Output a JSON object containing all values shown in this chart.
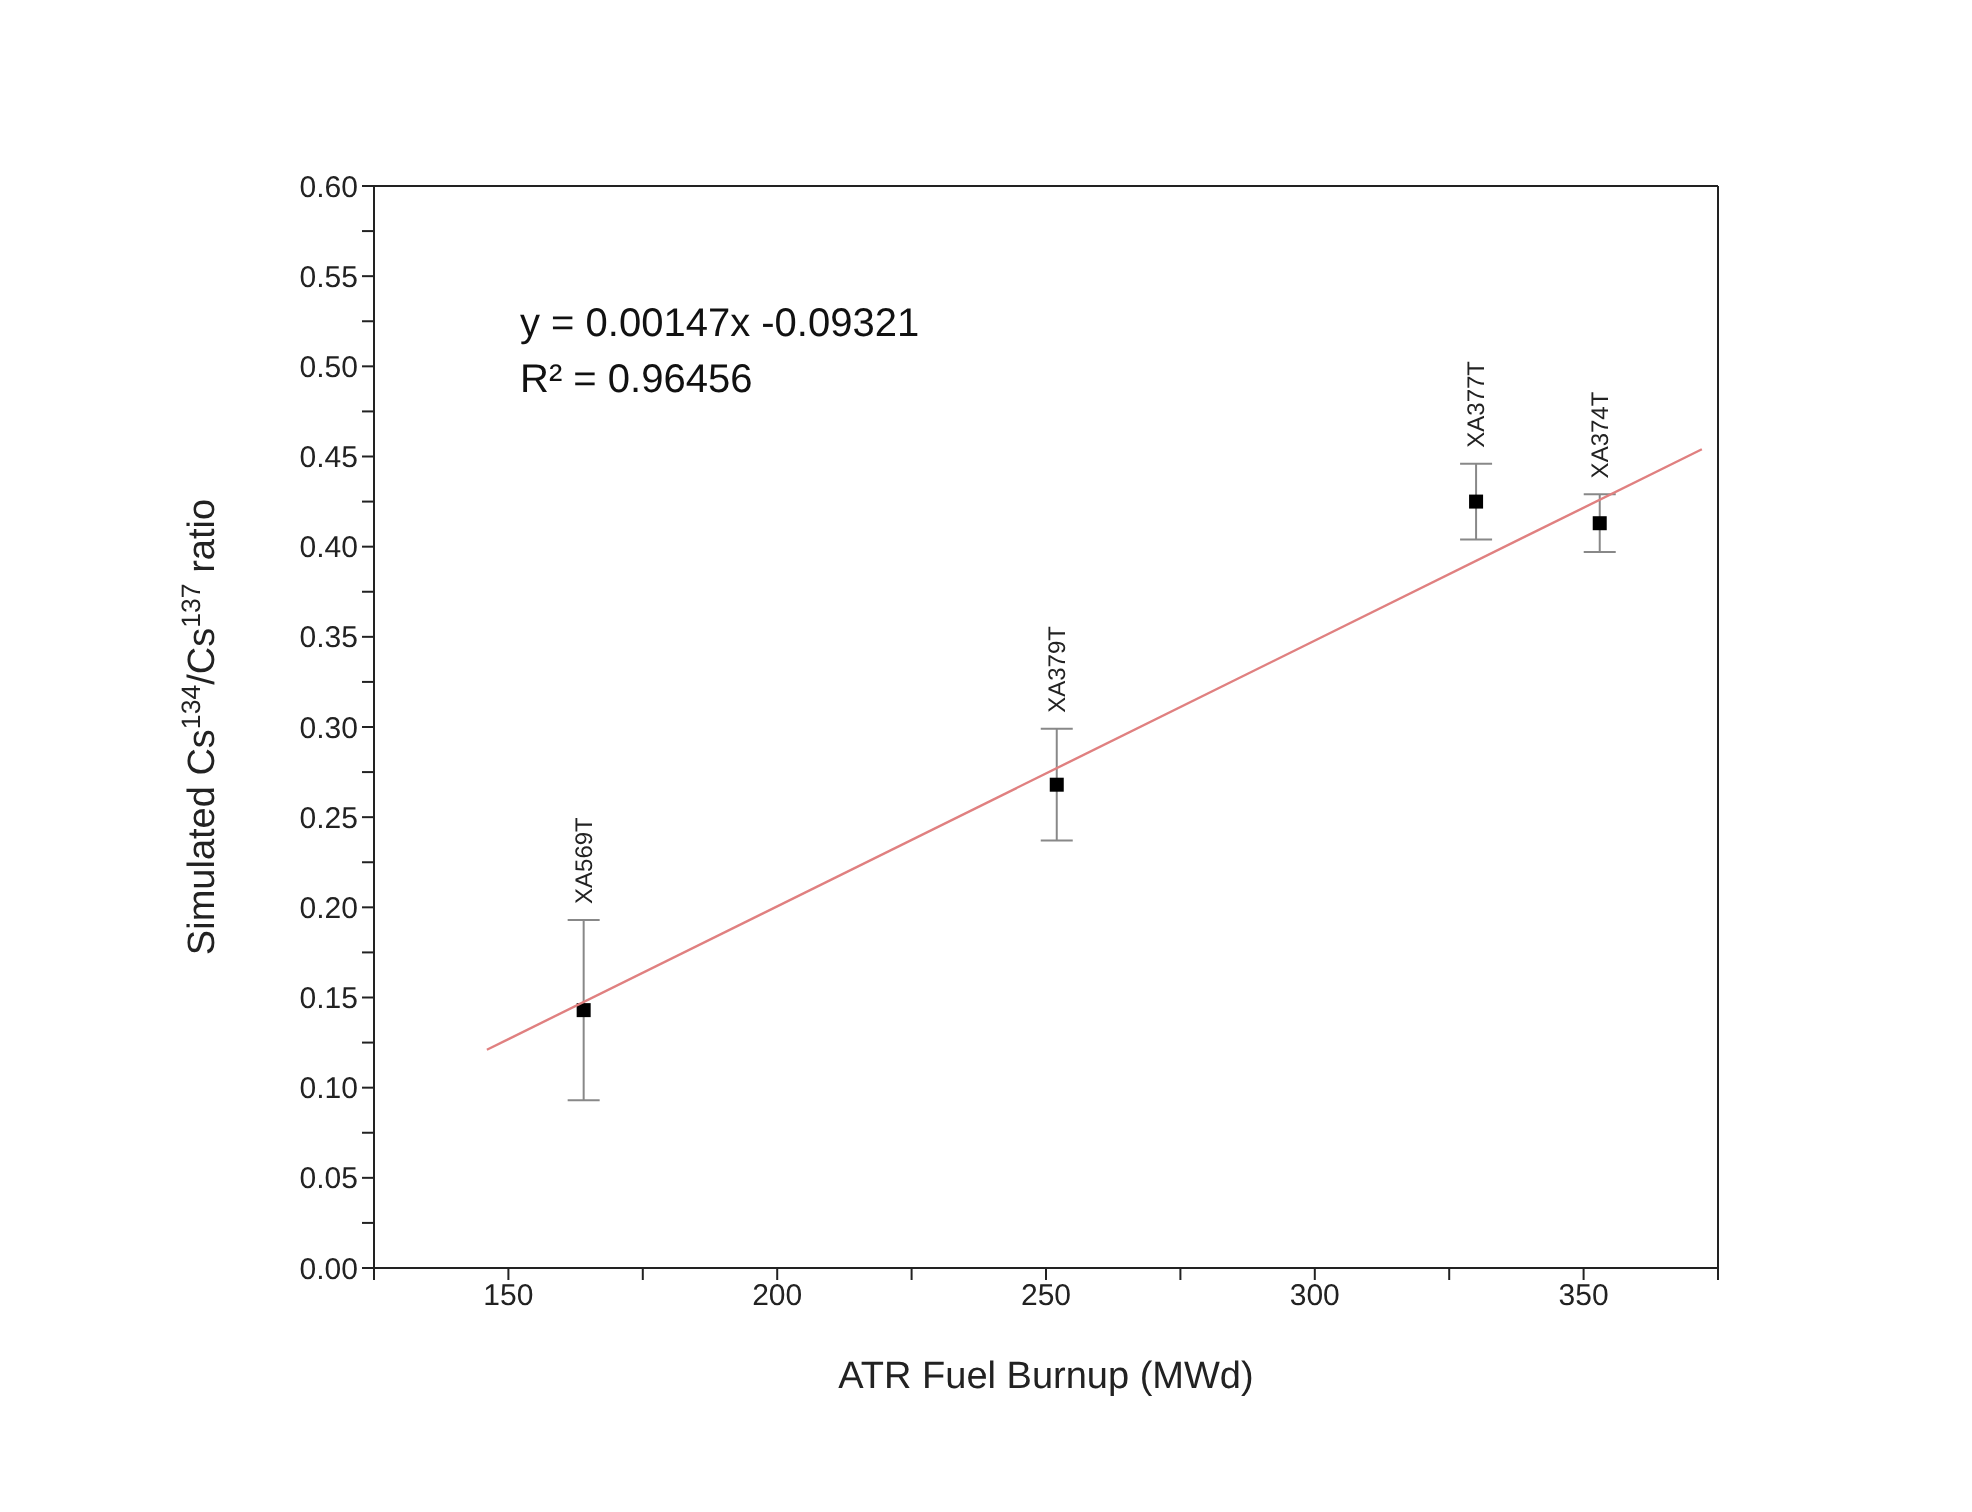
{
  "chart_data": {
    "type": "scatter",
    "xlabel": "ATR Fuel Burnup (MWd)",
    "ylabel": "Simulated Cs$^{134}$/Cs$^{137}$ ratio",
    "xlim": [
      125,
      375
    ],
    "xticks": [
      {
        "value": 125,
        "label": null
      },
      150,
      {
        "value": 175,
        "label": null
      },
      200,
      {
        "value": 225,
        "label": null
      },
      250,
      {
        "value": 275,
        "label": null
      },
      300,
      {
        "value": 325,
        "label": null
      },
      350,
      {
        "value": 375,
        "label": null
      }
    ],
    "ylim": [
      0,
      0.6
    ],
    "yticks": [
      {
        "value": 0,
        "label": "0.00"
      },
      {
        "value": 0.025,
        "label": null
      },
      {
        "value": 0.05,
        "label": "0.05"
      },
      {
        "value": 0.075,
        "label": null
      },
      {
        "value": 0.1,
        "label": "0.10"
      },
      {
        "value": 0.125,
        "label": null
      },
      {
        "value": 0.15,
        "label": "0.15"
      },
      {
        "value": 0.175,
        "label": null
      },
      {
        "value": 0.2,
        "label": "0.20"
      },
      {
        "value": 0.225,
        "label": null
      },
      {
        "value": 0.25,
        "label": "0.25"
      },
      {
        "value": 0.275,
        "label": null
      },
      {
        "value": 0.3,
        "label": "0.30"
      },
      {
        "value": 0.325,
        "label": null
      },
      {
        "value": 0.35,
        "label": "0.35"
      },
      {
        "value": 0.375,
        "label": null
      },
      {
        "value": 0.4,
        "label": "0.40"
      },
      {
        "value": 0.425,
        "label": null
      },
      {
        "value": 0.45,
        "label": "0.45"
      },
      {
        "value": 0.475,
        "label": null
      },
      {
        "value": 0.5,
        "label": "0.50"
      },
      {
        "value": 0.525,
        "label": null
      },
      {
        "value": 0.55,
        "label": "0.55"
      },
      {
        "value": 0.575,
        "label": null
      },
      {
        "value": 0.6,
        "label": "0.60"
      }
    ],
    "series": [
      {
        "marker": "square",
        "color": "#000000",
        "x": [
          164,
          252,
          330,
          353
        ],
        "values": [
          0.143,
          0.268,
          0.425,
          0.413
        ],
        "errors": [
          0.05,
          0.031,
          0.021,
          0.016
        ]
      },
      {
        "type": "line",
        "marker": "none",
        "color": "#e08080",
        "x": [
          146,
          372
        ],
        "values": [
          0.121,
          0.454
        ]
      }
    ],
    "annotations": [
      "y = 0.00147x -0.09321",
      "R² = 0.96456",
      {
        "text": "XA569T",
        "x": 164,
        "y": 0.193
      },
      {
        "text": "XA379T",
        "x": 252,
        "y": 0.299
      },
      {
        "text": "XA377T",
        "x": 330,
        "y": 0.446
      },
      {
        "text": "XA374T",
        "x": 353,
        "y": 0.429
      }
    ]
  }
}
